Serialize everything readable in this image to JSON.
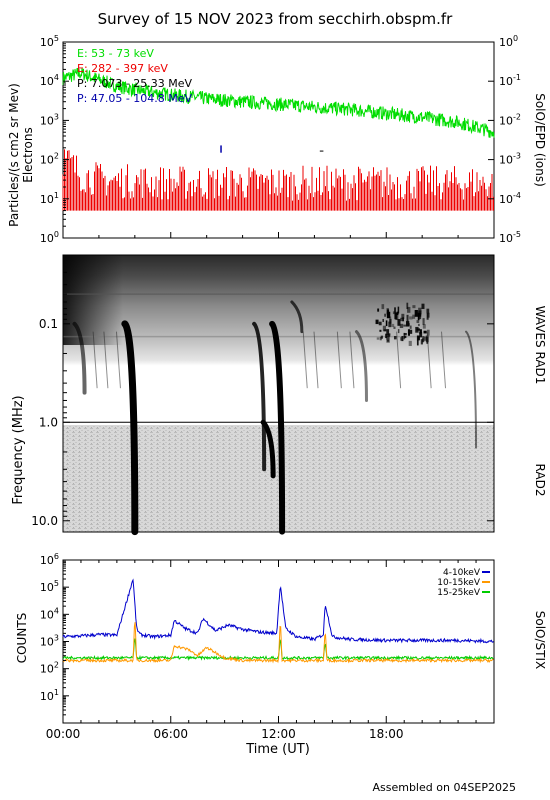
{
  "title": "Survey of 15 NOV 2023 from secchirh.obspm.fr",
  "footer": "Assembled on 04SEP2025",
  "colors": {
    "e_low": "#00dd00",
    "e_high": "#ee0000",
    "p_low": "#000000",
    "p_high": "#0000aa",
    "stix_4_10": "#0000cc",
    "stix_10_15": "#ff9900",
    "stix_15_25": "#00cc00"
  },
  "chart_data": [
    {
      "type": "line",
      "panel": "SolO/EPD",
      "ylabel_left": "Particles/(s cm2 sr Mev) Electrons",
      "ylabel_right": "SolO/EPD (ions)",
      "ylim_left": [
        1,
        100000
      ],
      "ylim_right": [
        1e-05,
        1
      ],
      "yscale": "log",
      "yticks_left": [
        "10^0",
        "10^1",
        "10^2",
        "10^3",
        "10^4",
        "10^5"
      ],
      "yticks_right": [
        "10^-5",
        "10^-4",
        "10^-3",
        "10^-2",
        "10^-1",
        "10^0"
      ],
      "legend_position": "top-left",
      "legend": [
        {
          "label": "E: 53 - 73 keV"
        },
        {
          "label": "E: 282 - 397 keV"
        },
        {
          "label": "P: 7.073 - 25.33 MeV"
        },
        {
          "label": "P: 47.05 - 104.8 MeV"
        }
      ],
      "series": [
        {
          "name": "E: 53 - 73 keV",
          "x": [
            0,
            1,
            2,
            3,
            4,
            6,
            8,
            10,
            12,
            14,
            16,
            18,
            20,
            22,
            24
          ],
          "y": [
            12000,
            16000,
            11000,
            7500,
            6000,
            4500,
            3600,
            3000,
            2600,
            2200,
            1900,
            1500,
            1200,
            900,
            500
          ]
        },
        {
          "name": "E: 282 - 397 keV",
          "x": [
            0,
            0.5,
            1,
            2,
            3,
            4,
            6,
            8,
            12,
            16,
            20,
            24
          ],
          "y": [
            40,
            25,
            15,
            11,
            10,
            10,
            9,
            9,
            9,
            9,
            9,
            9
          ]
        }
      ]
    },
    {
      "type": "heatmap",
      "panel": "WAVES RAD1 / RAD2",
      "ylabel": "Frequency (MHz)",
      "label_rad1": "WAVES RAD1",
      "label_rad2": "RAD2",
      "yscale": "log",
      "ylim": [
        0.02,
        13
      ],
      "yticks": [
        "0.1",
        "1.0",
        "10.0"
      ],
      "bursts_ut": [
        1.2,
        4.0,
        11.2,
        11.7,
        12.2,
        13.3,
        16.9,
        18.0,
        19.8,
        23.0
      ]
    },
    {
      "type": "line",
      "panel": "SolO/STIX",
      "ylabel": "COUNTS",
      "ylabel_right": "SolO/STIX",
      "yscale": "log",
      "ylim": [
        1,
        1000000
      ],
      "yticks": [
        "10^1",
        "10^2",
        "10^3",
        "10^4",
        "10^5",
        "10^6"
      ],
      "xlabel": "Time (UT)",
      "xticks": [
        "00:00",
        "06:00",
        "12:00",
        "18:00"
      ],
      "xlim": [
        0,
        24
      ],
      "legend_position": "top-right",
      "series": [
        {
          "name": "4-10keV",
          "x": [
            0,
            1,
            2,
            3,
            3.9,
            4.1,
            4.3,
            5,
            6,
            6.2,
            6.8,
            7.5,
            7.8,
            8.5,
            9.2,
            10,
            11,
            11.9,
            12.1,
            12.4,
            13,
            14,
            14.5,
            14.6,
            15,
            16,
            18,
            20,
            22,
            24
          ],
          "y": [
            1500,
            1600,
            1800,
            1700,
            200000,
            3000,
            1800,
            1500,
            1700,
            6000,
            3000,
            2000,
            7000,
            2500,
            4000,
            2800,
            2200,
            2000,
            130000,
            3000,
            1500,
            1200,
            1800,
            25000,
            1500,
            1200,
            1100,
            1100,
            1100,
            1000
          ]
        },
        {
          "name": "10-15keV",
          "x": [
            0,
            3.9,
            4.0,
            4.1,
            6,
            6.2,
            7,
            7.5,
            8,
            9,
            10,
            12,
            12.1,
            12.2,
            14.5,
            14.6,
            14.7,
            18,
            24
          ],
          "y": [
            200,
            200,
            8000,
            200,
            200,
            700,
            500,
            300,
            600,
            250,
            200,
            200,
            7000,
            200,
            200,
            3000,
            200,
            200,
            200
          ]
        },
        {
          "name": "15-25keV",
          "x": [
            0,
            3.9,
            4.0,
            4.1,
            6,
            12,
            12.1,
            12.2,
            14.5,
            14.6,
            14.7,
            18,
            24
          ],
          "y": [
            250,
            250,
            1500,
            250,
            250,
            250,
            1500,
            250,
            250,
            1000,
            250,
            250,
            250
          ]
        }
      ]
    }
  ]
}
